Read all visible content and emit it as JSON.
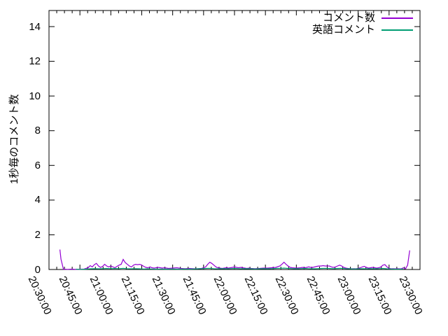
{
  "chart_data": {
    "type": "line",
    "title": "",
    "xlabel": "",
    "ylabel": "1秒毎のコメント数",
    "ylim": [
      0,
      14.93
    ],
    "yticks": [
      0,
      2,
      4,
      6,
      8,
      10,
      12,
      14
    ],
    "grid": false,
    "x_axis": {
      "unit": "time HH:MM:SS",
      "range_minutes_from_2030": [
        0,
        180
      ],
      "tick_labels": [
        "20:30:00",
        "20:45:00",
        "21:00:00",
        "21:15:00",
        "21:30:00",
        "21:45:00",
        "22:00:00",
        "22:15:00",
        "22:30:00",
        "22:45:00",
        "23:00:00",
        "23:15:00",
        "23:30:00"
      ],
      "tick_minutes": [
        0,
        15,
        30,
        45,
        60,
        75,
        90,
        105,
        120,
        135,
        150,
        165,
        180
      ],
      "minor_tick_step_minutes": 3.75,
      "label_rotation_deg": 65
    },
    "legend": {
      "position": "top-right",
      "entries": [
        {
          "label": "コメント数",
          "color": "#9400d3"
        },
        {
          "label": "英語コメント",
          "color": "#009e73"
        }
      ]
    },
    "series": [
      {
        "name": "コメント数",
        "color": "#9400d3",
        "points": [
          [
            5.3,
            1.15
          ],
          [
            5.8,
            0.6
          ],
          [
            7,
            0.02
          ],
          [
            9,
            0.01
          ],
          [
            11,
            0.02
          ],
          [
            13,
            0.01
          ],
          [
            15,
            0.02
          ],
          [
            17,
            0.03
          ],
          [
            19,
            0.1
          ],
          [
            20,
            0.22
          ],
          [
            21,
            0.15
          ],
          [
            22,
            0.28
          ],
          [
            23,
            0.35
          ],
          [
            24,
            0.2
          ],
          [
            25,
            0.12
          ],
          [
            26,
            0.18
          ],
          [
            27,
            0.3
          ],
          [
            28,
            0.2
          ],
          [
            29,
            0.15
          ],
          [
            30,
            0.2
          ],
          [
            31,
            0.15
          ],
          [
            32,
            0.1
          ],
          [
            33,
            0.18
          ],
          [
            34,
            0.25
          ],
          [
            35,
            0.3
          ],
          [
            36,
            0.58
          ],
          [
            37,
            0.4
          ],
          [
            38,
            0.3
          ],
          [
            39,
            0.2
          ],
          [
            40,
            0.15
          ],
          [
            41,
            0.25
          ],
          [
            42,
            0.3
          ],
          [
            43,
            0.28
          ],
          [
            44,
            0.3
          ],
          [
            45,
            0.25
          ],
          [
            46,
            0.18
          ],
          [
            47,
            0.12
          ],
          [
            48,
            0.1
          ],
          [
            49,
            0.15
          ],
          [
            50,
            0.1
          ],
          [
            51,
            0.08
          ],
          [
            52,
            0.1
          ],
          [
            53,
            0.12
          ],
          [
            54,
            0.1
          ],
          [
            55,
            0.08
          ],
          [
            56,
            0.1
          ],
          [
            57,
            0.08
          ],
          [
            58,
            0.06
          ],
          [
            60,
            0.08
          ],
          [
            62,
            0.1
          ],
          [
            63,
            0.08
          ],
          [
            64,
            0.06
          ],
          [
            66,
            0.05
          ],
          [
            68,
            0.06
          ],
          [
            70,
            0.05
          ],
          [
            72,
            0.04
          ],
          [
            74,
            0.06
          ],
          [
            75,
            0.1
          ],
          [
            76,
            0.15
          ],
          [
            77,
            0.3
          ],
          [
            78,
            0.42
          ],
          [
            79,
            0.35
          ],
          [
            80,
            0.25
          ],
          [
            81,
            0.15
          ],
          [
            82,
            0.1
          ],
          [
            83,
            0.08
          ],
          [
            84,
            0.06
          ],
          [
            85,
            0.08
          ],
          [
            86,
            0.1
          ],
          [
            87,
            0.08
          ],
          [
            88,
            0.1
          ],
          [
            89,
            0.12
          ],
          [
            90,
            0.15
          ],
          [
            91,
            0.12
          ],
          [
            92,
            0.1
          ],
          [
            93,
            0.12
          ],
          [
            94,
            0.1
          ],
          [
            95,
            0.08
          ],
          [
            96,
            0.06
          ],
          [
            97,
            0.08
          ],
          [
            98,
            0.06
          ],
          [
            100,
            0.05
          ],
          [
            102,
            0.06
          ],
          [
            104,
            0.08
          ],
          [
            106,
            0.08
          ],
          [
            108,
            0.1
          ],
          [
            110,
            0.12
          ],
          [
            112,
            0.2
          ],
          [
            113,
            0.3
          ],
          [
            114,
            0.42
          ],
          [
            115,
            0.3
          ],
          [
            116,
            0.2
          ],
          [
            117,
            0.12
          ],
          [
            118,
            0.1
          ],
          [
            120,
            0.08
          ],
          [
            122,
            0.1
          ],
          [
            123,
            0.12
          ],
          [
            124,
            0.1
          ],
          [
            125,
            0.12
          ],
          [
            126,
            0.15
          ],
          [
            127,
            0.12
          ],
          [
            128,
            0.12
          ],
          [
            130,
            0.18
          ],
          [
            131,
            0.2
          ],
          [
            132,
            0.2
          ],
          [
            133,
            0.22
          ],
          [
            134,
            0.2
          ],
          [
            135,
            0.2
          ],
          [
            136,
            0.2
          ],
          [
            137,
            0.15
          ],
          [
            138,
            0.12
          ],
          [
            139,
            0.15
          ],
          [
            140,
            0.2
          ],
          [
            141,
            0.25
          ],
          [
            142,
            0.2
          ],
          [
            143,
            0.12
          ],
          [
            144,
            0.08
          ],
          [
            145,
            0.06
          ],
          [
            146,
            0.05
          ],
          [
            147,
            0.04
          ],
          [
            148,
            0.05
          ],
          [
            149,
            0.04
          ],
          [
            150,
            0.06
          ],
          [
            151,
            0.1
          ],
          [
            152,
            0.15
          ],
          [
            153,
            0.18
          ],
          [
            154,
            0.12
          ],
          [
            155,
            0.08
          ],
          [
            156,
            0.1
          ],
          [
            157,
            0.12
          ],
          [
            158,
            0.1
          ],
          [
            159,
            0.08
          ],
          [
            160,
            0.1
          ],
          [
            161,
            0.15
          ],
          [
            162,
            0.25
          ],
          [
            163,
            0.28
          ],
          [
            164,
            0.15
          ],
          [
            165,
            0.06
          ],
          [
            166,
            0.04
          ],
          [
            167,
            0.05
          ],
          [
            168,
            0.04
          ],
          [
            169,
            0.05
          ],
          [
            170,
            0.04
          ],
          [
            171,
            0.05
          ],
          [
            172,
            0.1
          ],
          [
            173,
            0.04
          ],
          [
            174,
            0.25
          ],
          [
            175,
            1.1
          ]
        ]
      },
      {
        "name": "英語コメント",
        "color": "#009e73",
        "points": [
          [
            13,
            0.02
          ],
          [
            15,
            0.01
          ],
          [
            18,
            0.02
          ],
          [
            20,
            0.04
          ],
          [
            22,
            0.05
          ],
          [
            24,
            0.04
          ],
          [
            26,
            0.05
          ],
          [
            28,
            0.06
          ],
          [
            30,
            0.05
          ],
          [
            32,
            0.06
          ],
          [
            34,
            0.05
          ],
          [
            36,
            0.07
          ],
          [
            38,
            0.05
          ],
          [
            40,
            0.04
          ],
          [
            42,
            0.05
          ],
          [
            44,
            0.04
          ],
          [
            46,
            0.03
          ],
          [
            48,
            0.04
          ],
          [
            50,
            0.03
          ],
          [
            52,
            0.02
          ],
          [
            54,
            0.03
          ],
          [
            56,
            0.02
          ],
          [
            58,
            0.02
          ],
          [
            60,
            0.03
          ],
          [
            62,
            0.02
          ],
          [
            64,
            0.02
          ],
          [
            66,
            0.03
          ],
          [
            68,
            0.02
          ],
          [
            70,
            0.03
          ],
          [
            72,
            0.04
          ],
          [
            74,
            0.05
          ],
          [
            76,
            0.06
          ],
          [
            78,
            0.07
          ],
          [
            80,
            0.05
          ],
          [
            82,
            0.04
          ],
          [
            84,
            0.05
          ],
          [
            86,
            0.04
          ],
          [
            88,
            0.05
          ],
          [
            90,
            0.06
          ],
          [
            92,
            0.05
          ],
          [
            94,
            0.04
          ],
          [
            96,
            0.05
          ],
          [
            98,
            0.04
          ],
          [
            100,
            0.03
          ],
          [
            102,
            0.04
          ],
          [
            104,
            0.05
          ],
          [
            106,
            0.04
          ],
          [
            108,
            0.05
          ],
          [
            110,
            0.06
          ],
          [
            112,
            0.07
          ],
          [
            114,
            0.08
          ],
          [
            116,
            0.06
          ],
          [
            118,
            0.05
          ],
          [
            120,
            0.04
          ],
          [
            122,
            0.05
          ],
          [
            124,
            0.06
          ],
          [
            126,
            0.05
          ],
          [
            128,
            0.04
          ],
          [
            130,
            0.05
          ],
          [
            132,
            0.06
          ],
          [
            134,
            0.07
          ],
          [
            136,
            0.06
          ],
          [
            138,
            0.05
          ],
          [
            140,
            0.06
          ],
          [
            142,
            0.07
          ],
          [
            144,
            0.05
          ],
          [
            146,
            0.04
          ],
          [
            148,
            0.03
          ],
          [
            150,
            0.04
          ],
          [
            152,
            0.05
          ],
          [
            154,
            0.04
          ],
          [
            156,
            0.05
          ],
          [
            158,
            0.04
          ],
          [
            160,
            0.05
          ],
          [
            162,
            0.06
          ],
          [
            164,
            0.04
          ],
          [
            166,
            0.03
          ],
          [
            168,
            0.02
          ],
          [
            170,
            0.02
          ],
          [
            172,
            0.03
          ]
        ]
      }
    ],
    "colors": {
      "axis": "#000000",
      "background": "#ffffff"
    }
  }
}
